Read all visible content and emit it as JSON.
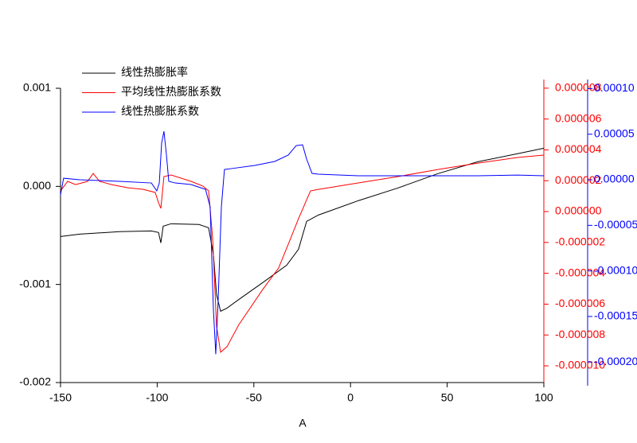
{
  "chart_data": {
    "type": "line",
    "x_label": "A",
    "xlim": [
      -150,
      100
    ],
    "xticks": [
      -150,
      -100,
      -50,
      0,
      50,
      100
    ],
    "ylim": [
      -0.002,
      0.001
    ],
    "yticks": [
      -0.002,
      -0.001,
      {
        "value": 0,
        "label": "0.000"
      },
      0.001
    ],
    "y2lim": [
      -1.129e-05,
      8.56e-06
    ],
    "y2ticks": [
      {
        "value": -1e-05,
        "label": "-0.000010"
      },
      {
        "value": -8e-06,
        "label": "-0.000008"
      },
      {
        "value": -6e-06,
        "label": "-0.000006"
      },
      {
        "value": -4e-06,
        "label": "-0.000004"
      },
      {
        "value": -2e-06,
        "label": "-0.000002"
      },
      {
        "value": 0,
        "label": "0.000000"
      },
      2e-06,
      4e-06,
      6e-06,
      8e-06
    ],
    "y3lim": [
      -0.000226,
      0.00011
    ],
    "y3ticks": [
      {
        "value": -0.0002,
        "label": "-0.00020"
      },
      {
        "value": -0.00015,
        "label": "-0.00015"
      },
      {
        "value": -0.0001,
        "label": "-0.00010"
      },
      {
        "value": -5e-05,
        "label": "-0.00005"
      },
      {
        "value": 0,
        "label": "0.00000"
      },
      {
        "value": 5e-05,
        "label": "0.00005"
      },
      {
        "value": 0.0001,
        "label": "0.00010"
      }
    ],
    "series": [
      {
        "name": "线性热膨胀率",
        "color": "#000000",
        "axis": "y",
        "x": [
          -150,
          -140.1,
          -119.5,
          -103,
          -99.3,
          -98.1,
          -96.9,
          -92.8,
          -78.3,
          -73.4,
          -70.9,
          -69.3,
          -67.2,
          -63.9,
          -57.7,
          -45.4,
          -33,
          -26.9,
          -22.7,
          -16.6,
          4,
          24.6,
          45.2,
          65.8,
          86.4,
          100
        ],
        "values": [
          -0.000511,
          -0.000487,
          -0.000462,
          -0.000454,
          -0.00047,
          -0.000576,
          -0.000406,
          -0.000381,
          -0.000389,
          -0.000422,
          -0.000697,
          -0.001103,
          -0.001273,
          -0.001241,
          -0.001152,
          -0.000981,
          -0.000803,
          -0.000641,
          -0.000357,
          -0.000292,
          -0.000146,
          -1.6e-05,
          0.00013,
          0.000251,
          0.000333,
          0.000389
        ]
      },
      {
        "name": "平均线性热膨胀系数",
        "color": "#ff0000",
        "axis": "y2",
        "x": [
          -150,
          -146.3,
          -142.2,
          -136,
          -133.1,
          -129.8,
          -123.6,
          -115.4,
          -107.2,
          -101,
          -99.3,
          -98.1,
          -96.5,
          -92.8,
          -82.5,
          -76.3,
          -73.4,
          -71.3,
          -69.3,
          -67.2,
          -63.9,
          -57.7,
          -45.4,
          -37.2,
          -31,
          -26.9,
          -20.7,
          -16.6,
          4,
          24.6,
          45.2,
          65.8,
          86.4,
          100
        ],
        "values": [
          1.34e-06,
          1.96e-06,
          1.75e-06,
          1.96e-06,
          2.47e-06,
          1.96e-06,
          1.75e-06,
          1.55e-06,
          1.44e-06,
          1.24e-06,
          5.7e-07,
          2.1e-07,
          2.27e-06,
          2.37e-06,
          1.96e-06,
          1.65e-06,
          1.34e-06,
          -1.75e-06,
          -7.42e-06,
          -9.12e-06,
          -8.76e-06,
          -7.32e-06,
          -5.05e-06,
          -3.66e-06,
          -1.75e-06,
          -4.6e-07,
          1.34e-06,
          1.44e-06,
          1.86e-06,
          2.27e-06,
          2.73e-06,
          3.14e-06,
          3.51e-06,
          3.66e-06
        ]
      },
      {
        "name": "线性热膨胀系数",
        "color": "#0000ff",
        "axis": "y3",
        "x": [
          -150,
          -148.4,
          -140.1,
          -119.5,
          -103,
          -100.2,
          -98.9,
          -97.7,
          -96.5,
          -95.2,
          -94,
          -90.7,
          -82.5,
          -75,
          -72.6,
          -70.9,
          -69.7,
          -68.5,
          -66.8,
          -65.2,
          -61.9,
          -49.5,
          -39.2,
          -32.2,
          -28.1,
          -24.8,
          -22.7,
          -19.9,
          -16.6,
          4,
          24.6,
          45.2,
          65.8,
          86.4,
          100
        ],
        "values": [
          -1.66e-05,
          1.7e-06,
          0,
          -1.7e-06,
          -3.5e-06,
          -1.22e-05,
          -3.5e-06,
          4.01e-05,
          5.32e-05,
          2.71e-05,
          -1.7e-06,
          -3.5e-06,
          -5.2e-06,
          -1.05e-05,
          -2.97e-05,
          -0.0001431,
          -0.0001914,
          -0.0001344,
          -2.97e-05,
          1.13e-05,
          1.22e-05,
          1.57e-05,
          2.01e-05,
          2.71e-05,
          3.75e-05,
          3.84e-05,
          2.27e-05,
          7e-06,
          6.1e-06,
          4.4e-06,
          4.4e-06,
          4.4e-06,
          4.4e-06,
          5.2e-06,
          4.4e-06
        ]
      }
    ]
  }
}
